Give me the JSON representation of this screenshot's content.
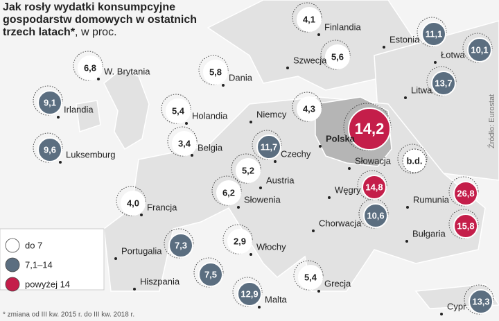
{
  "title": "Jak rosły wydatki konsumpcyjne gospodarstw domowych w ostatnich trzech latach*",
  "subtitle": ", w proc.",
  "source": "Źródło: Eurostat",
  "footnote": "* zmiana od III kw. 2015 r. do III kw. 2018 r.",
  "legend": [
    {
      "label": "do 7",
      "color": "#ffffff",
      "countries": [
        {
          "name": "Finlandia",
          "value": "4,1"
        },
        {
          "name": "W. Brytania",
          "value": "6,8"
        },
        {
          "name": "Dania",
          "value": "5,8"
        },
        {
          "name": "Szwecja",
          "value": "5,6"
        },
        {
          "name": "Holandia",
          "value": "5,4"
        },
        {
          "name": "Niemcy",
          "value": "4,3"
        },
        {
          "name": "Belgia",
          "value": "3,4"
        },
        {
          "name": "Austria",
          "value": "5,2"
        },
        {
          "name": "Słowenia",
          "value": "6,2"
        },
        {
          "name": "Francja",
          "value": "4,0"
        },
        {
          "name": "Włochy",
          "value": "2,9"
        },
        {
          "name": "Grecja",
          "value": "5,4"
        }
      ]
    },
    {
      "label": "7,1–14",
      "color": "#5b6e80",
      "countries": [
        {
          "name": "Estonia",
          "value": "11,1"
        },
        {
          "name": "Łotwa",
          "value": "10,1"
        },
        {
          "name": "Irlandia",
          "value": "9,1"
        },
        {
          "name": "Litwa",
          "value": "13,7"
        },
        {
          "name": "Luksemburg",
          "value": "9,6"
        },
        {
          "name": "Czechy",
          "value": "11,7"
        },
        {
          "name": "Chorwacja",
          "value": "10,6"
        },
        {
          "name": "Portugalia",
          "value": "7,3"
        },
        {
          "name": "Hiszpania",
          "value": "7,5"
        },
        {
          "name": "Malta",
          "value": "12,9"
        },
        {
          "name": "Cypr",
          "value": "13,3"
        }
      ]
    },
    {
      "label": "powyżej 14",
      "color": "#c41e4a",
      "countries": [
        {
          "name": "Polska",
          "value": "14,2"
        },
        {
          "name": "Węgry",
          "value": "14,8"
        },
        {
          "name": "Rumunia",
          "value": "26,8"
        },
        {
          "name": "Bułgaria",
          "value": "15,8"
        }
      ]
    }
  ],
  "no_data": [
    {
      "name": "Słowacja",
      "value": "b.d."
    }
  ]
}
